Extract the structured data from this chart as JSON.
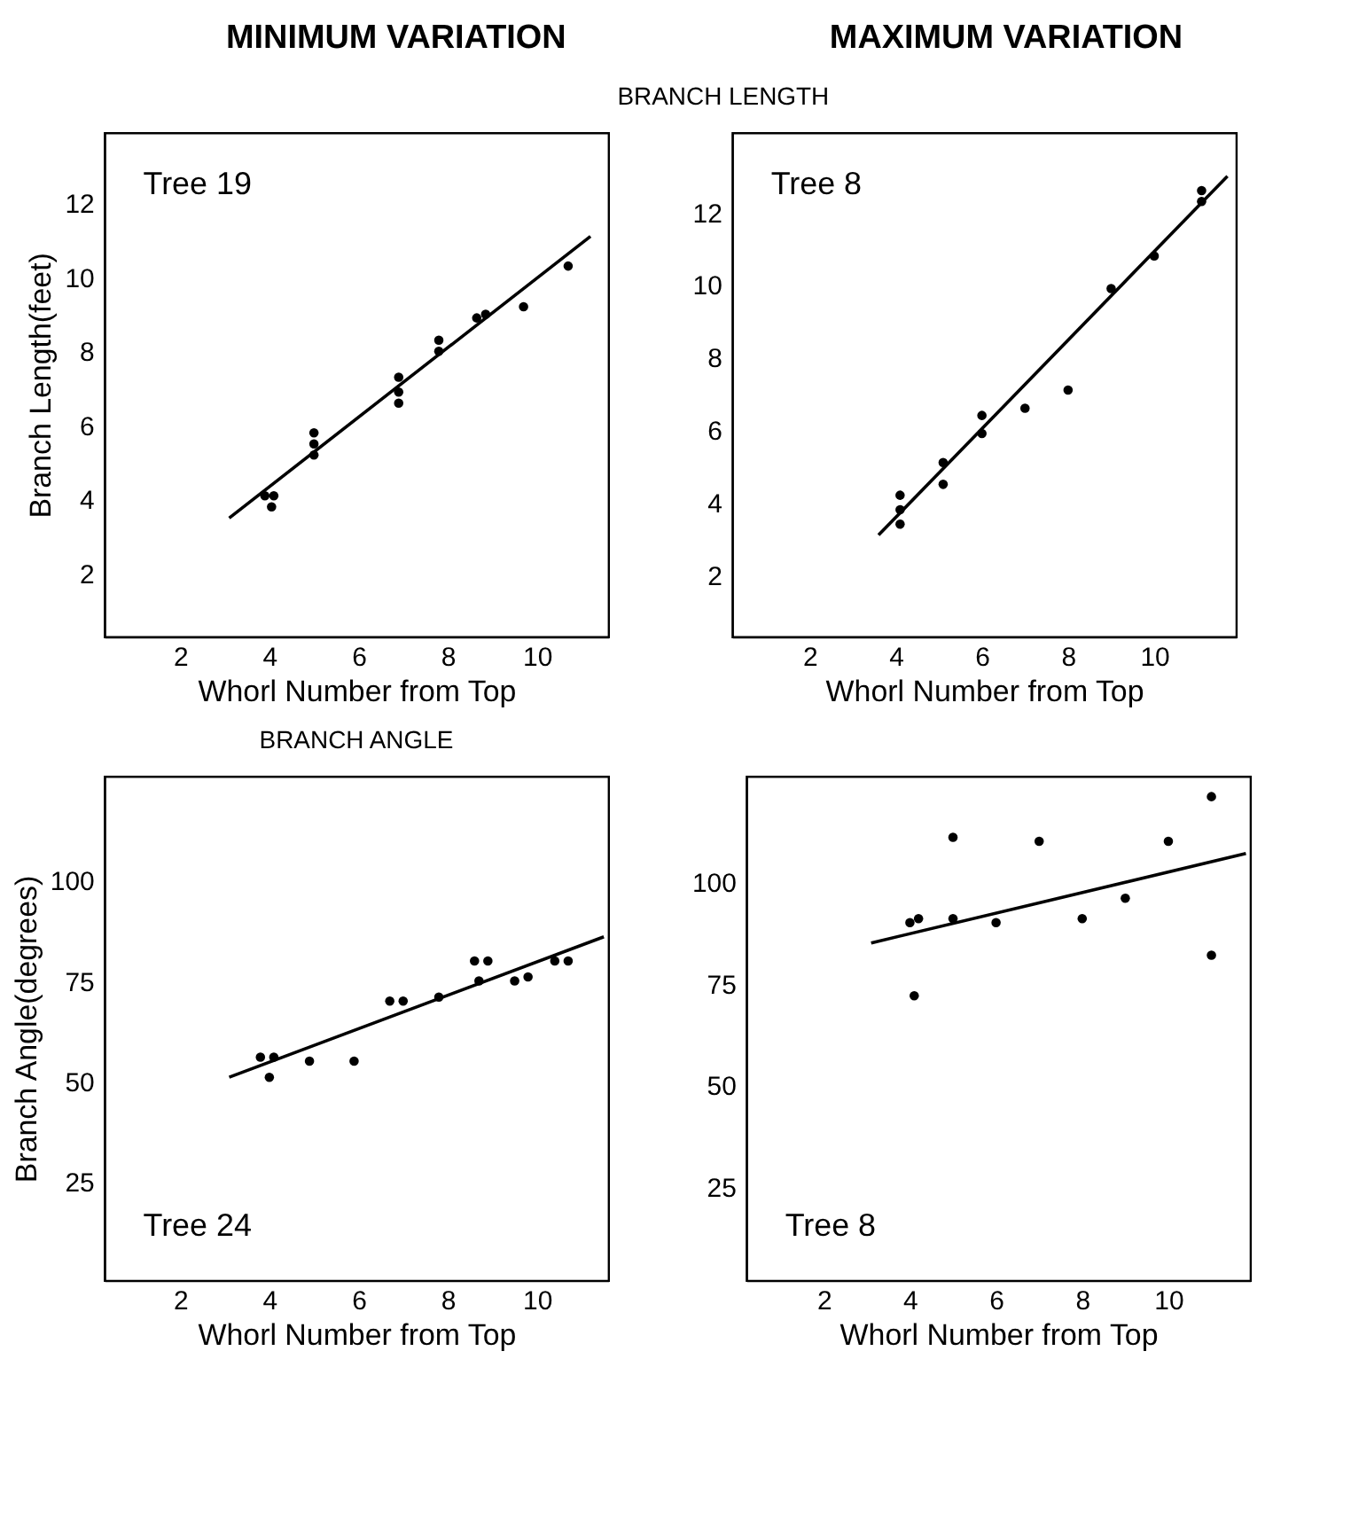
{
  "chart_data": [
    {
      "type": "scatter",
      "title": "MINIMUM VARIATION",
      "subtitle": "BRANCH LENGTH",
      "xlabel": "Whorl Number from Top",
      "ylabel": "Branch Length(feet)",
      "annotations": [
        "Tree 19"
      ],
      "marker": "circle",
      "xlim": [
        0.3,
        11.6
      ],
      "ylim": [
        0.3,
        13.9
      ],
      "xticks": [
        2,
        4,
        6,
        8,
        10
      ],
      "yticks": [
        2,
        4,
        6,
        8,
        10,
        12
      ],
      "series": [
        {
          "color": "#000000",
          "x": [
            3.9,
            4.1,
            4.05,
            5,
            5,
            5,
            6.9,
            6.9,
            6.9,
            7.8,
            7.8,
            8.65,
            8.85,
            9.7,
            10.7
          ],
          "values": [
            4.1,
            4.1,
            3.8,
            5.8,
            5.5,
            5.2,
            7.3,
            6.9,
            6.6,
            8.3,
            8.0,
            8.9,
            9.0,
            9.2,
            10.3
          ]
        },
        {
          "type": "line",
          "marker": "none",
          "color": "#000000",
          "x": [
            3.1,
            11.2
          ],
          "values": [
            3.5,
            11.1
          ]
        }
      ]
    },
    {
      "type": "scatter",
      "title": "MAXIMUM VARIATION",
      "xlabel": "Whorl Number from Top",
      "annotations": [
        "Tree 8"
      ],
      "marker": "circle",
      "xlim": [
        0.2,
        11.9
      ],
      "ylim": [
        0.3,
        14.2
      ],
      "xticks": [
        2,
        4,
        6,
        8,
        10
      ],
      "yticks": [
        2,
        4,
        6,
        8,
        10,
        12
      ],
      "series": [
        {
          "color": "#000000",
          "x": [
            4.1,
            4.1,
            4.1,
            5.1,
            5.1,
            6.0,
            6.0,
            7.0,
            8.0,
            9.0,
            10.0,
            11.1,
            11.1
          ],
          "values": [
            4.2,
            3.8,
            3.4,
            5.1,
            4.5,
            6.4,
            5.9,
            6.6,
            7.1,
            9.9,
            10.8,
            12.6,
            12.3
          ]
        },
        {
          "type": "line",
          "marker": "none",
          "color": "#000000",
          "x": [
            3.6,
            11.7
          ],
          "values": [
            3.1,
            13.0
          ]
        }
      ]
    },
    {
      "type": "scatter",
      "subtitle": "BRANCH ANGLE",
      "xlabel": "Whorl Number from Top",
      "ylabel": "Branch Angle(degrees)",
      "annotations": [
        "Tree 24"
      ],
      "marker": "circle",
      "xlim": [
        0.3,
        11.6
      ],
      "ylim": [
        0.4,
        126
      ],
      "xticks": [
        2,
        4,
        6,
        8,
        10
      ],
      "yticks": [
        25,
        50,
        75,
        100
      ],
      "series": [
        {
          "color": "#000000",
          "x": [
            3.8,
            4.1,
            4.0,
            4.9,
            5.9,
            6.7,
            7.0,
            7.8,
            8.6,
            8.9,
            8.7,
            9.5,
            9.8,
            10.4,
            10.7
          ],
          "values": [
            56,
            56,
            51,
            55,
            55,
            70,
            70,
            71,
            80,
            80,
            75,
            75,
            76,
            80,
            80
          ]
        },
        {
          "type": "line",
          "marker": "none",
          "color": "#000000",
          "x": [
            3.1,
            11.5
          ],
          "values": [
            51,
            86
          ]
        }
      ]
    },
    {
      "type": "scatter",
      "xlabel": "Whorl Number from Top",
      "annotations": [
        "Tree 8"
      ],
      "marker": "circle",
      "xlim": [
        0.2,
        11.9
      ],
      "ylim": [
        2,
        126
      ],
      "xticks": [
        2,
        4,
        6,
        8,
        10
      ],
      "yticks": [
        25,
        50,
        75,
        100
      ],
      "series": [
        {
          "color": "#000000",
          "x": [
            4.0,
            4.2,
            4.1,
            5.0,
            5.0,
            6.0,
            7.0,
            8.0,
            9.0,
            10.0,
            11.0,
            11.0
          ],
          "values": [
            90,
            91,
            72,
            111,
            91,
            90,
            110,
            91,
            96,
            110,
            121,
            82
          ]
        },
        {
          "type": "line",
          "marker": "none",
          "color": "#000000",
          "x": [
            3.1,
            11.8
          ],
          "values": [
            85,
            107
          ]
        }
      ]
    }
  ]
}
